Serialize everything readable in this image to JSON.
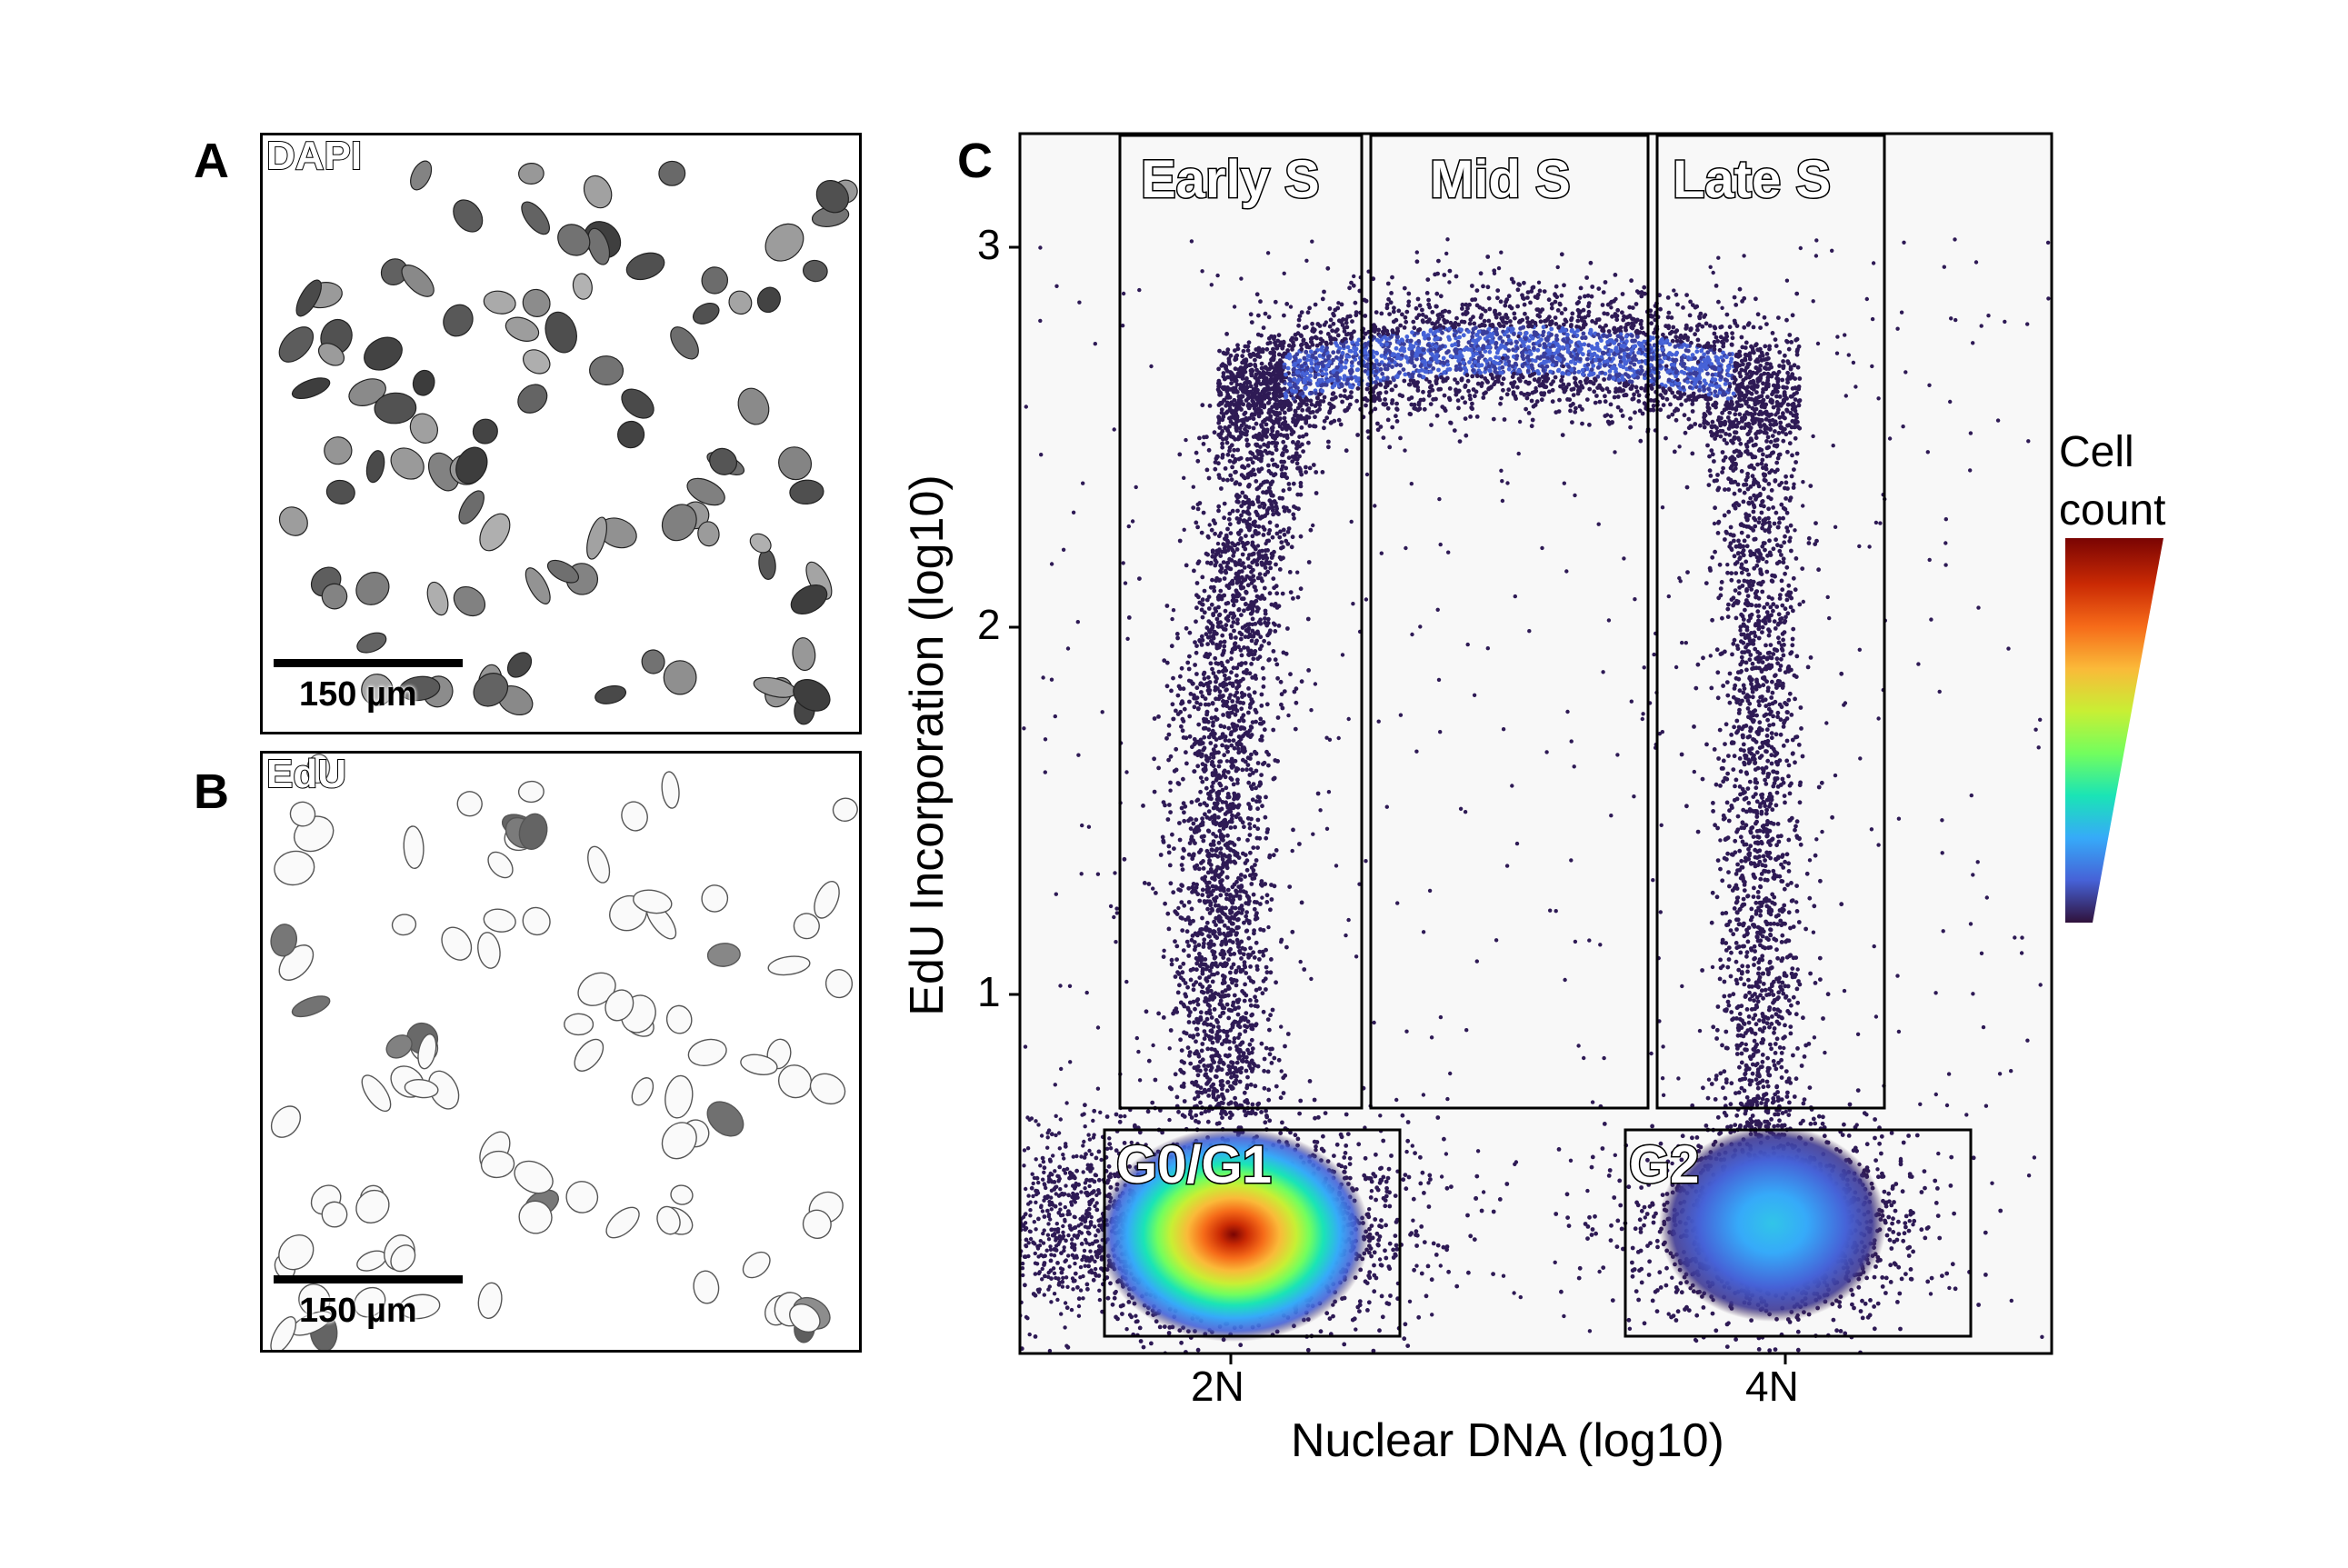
{
  "panels": {
    "a": {
      "letter": "A",
      "channel": "DAPI",
      "scale_label": "150 µm"
    },
    "b": {
      "letter": "B",
      "channel": "EdU",
      "scale_label": "150 µm"
    },
    "c": {
      "letter": "C"
    }
  },
  "chart_data": {
    "type": "scatter",
    "title": "",
    "xlabel": "Nuclear DNA (log10)",
    "ylabel": "EdU Incorporation (log10)",
    "x_ticks": [
      "2N",
      "4N"
    ],
    "y_ticks": [
      1,
      2,
      3
    ],
    "ylim": [
      0.1,
      3.3
    ],
    "density_coloring": true,
    "grid": false,
    "legend": {
      "title_line1": "Cell",
      "title_line2": "count",
      "placement": "right",
      "colormap": [
        "#30123b",
        "#4662d7",
        "#36aaf9",
        "#1ae4b6",
        "#72fe5e",
        "#c8ef34",
        "#faba39",
        "#f66b19",
        "#ca2a04",
        "#7a0403"
      ]
    },
    "gates": [
      {
        "name": "Early S",
        "x_range": [
          "2N",
          "2.6N"
        ],
        "y_range": [
          0.72,
          3.3
        ]
      },
      {
        "name": "Mid S",
        "x_range": [
          "2.6N",
          "3.5N"
        ],
        "y_range": [
          0.72,
          3.3
        ]
      },
      {
        "name": "Late S",
        "x_range": [
          "3.5N",
          "4.4N"
        ],
        "y_range": [
          0.72,
          3.3
        ]
      },
      {
        "name": "G0/G1",
        "x_range": [
          "1.6N",
          "2.6N"
        ],
        "y_range": [
          0.1,
          0.65
        ]
      },
      {
        "name": "G2",
        "x_range": [
          "3.5N",
          "5N"
        ],
        "y_range": [
          0.1,
          0.65
        ]
      }
    ],
    "populations": [
      {
        "name": "G0/G1",
        "x_center": "2N",
        "y_center": 0.35,
        "relative_density": 1.0
      },
      {
        "name": "G2",
        "x_center": "4N",
        "y_center": 0.36,
        "relative_density": 0.35
      }
    ]
  }
}
